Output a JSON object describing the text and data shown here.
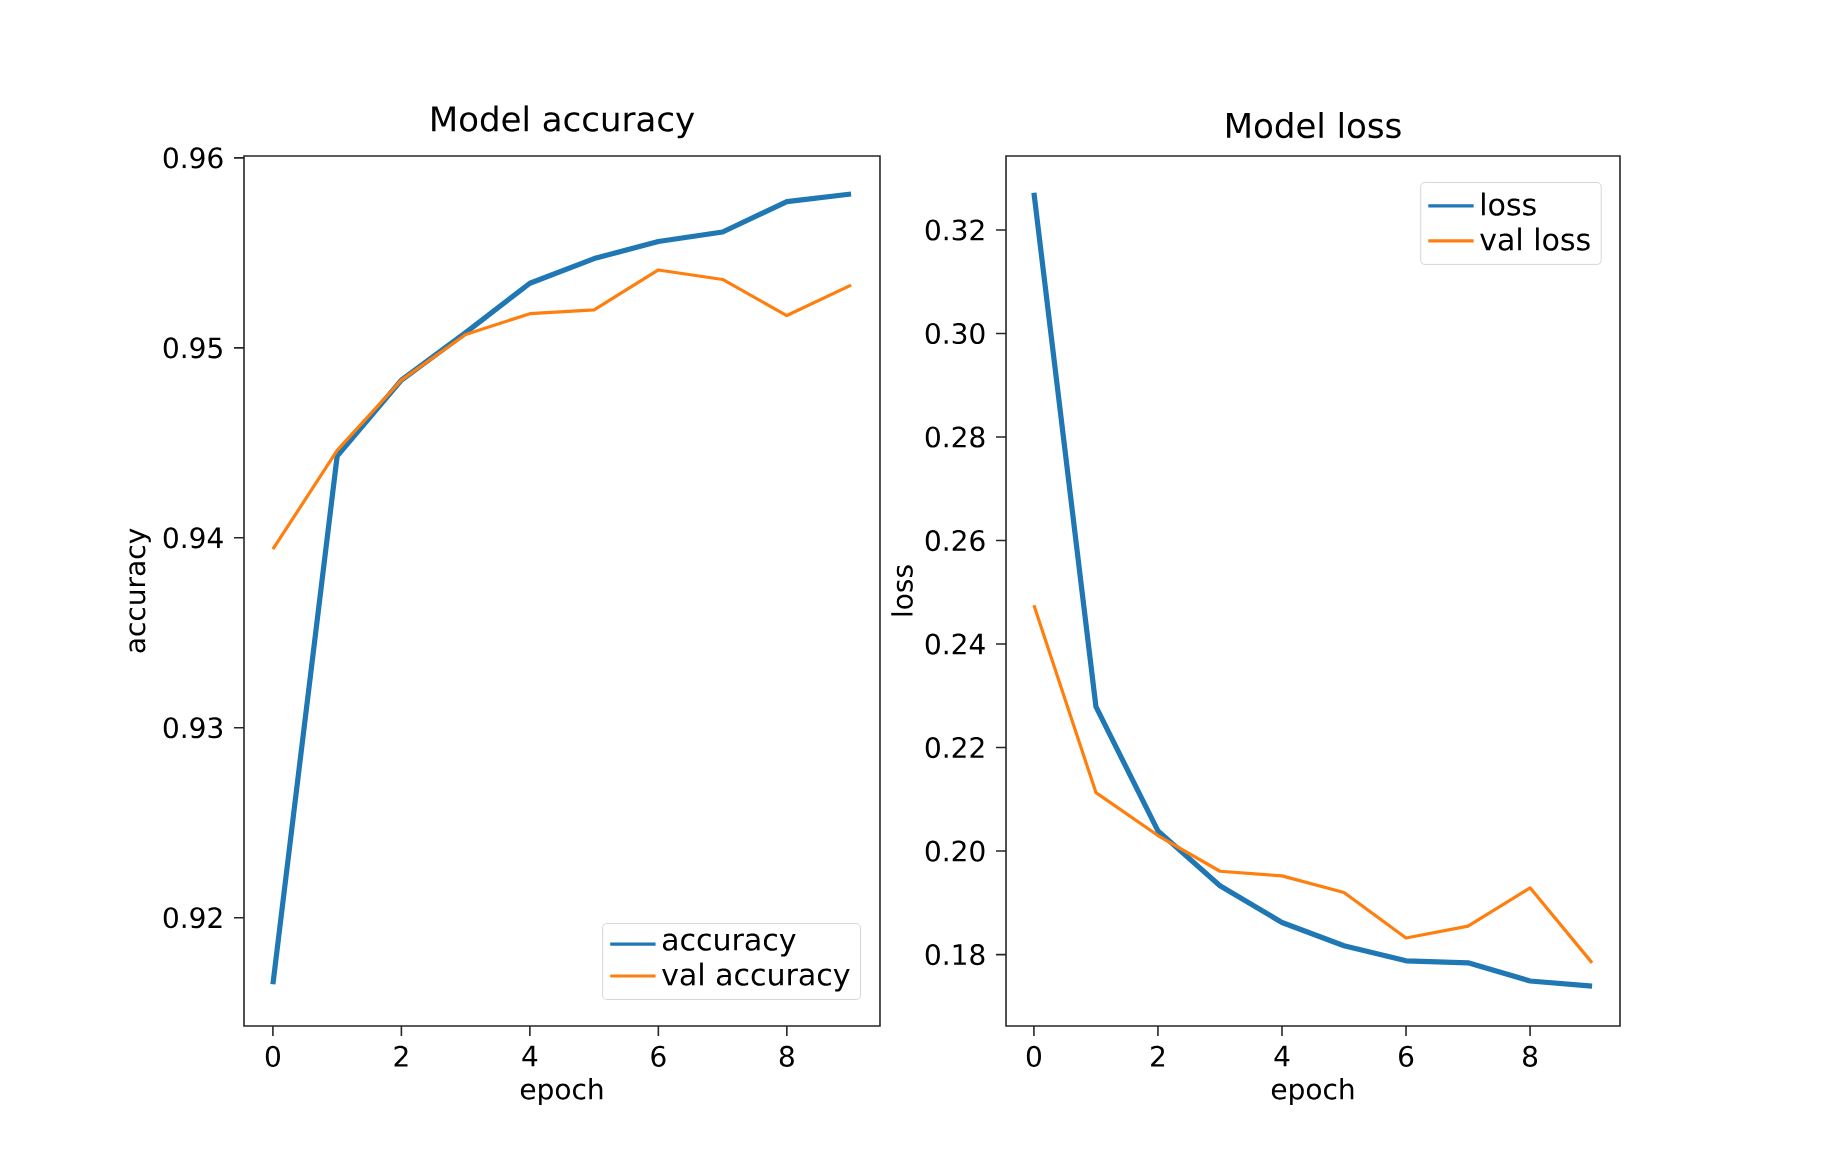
{
  "chart_data": [
    {
      "type": "line",
      "title": "Model accuracy",
      "xlabel": "epoch",
      "ylabel": "accuracy",
      "x": [
        0,
        1,
        2,
        3,
        4,
        5,
        6,
        7,
        8,
        9
      ],
      "xlim": [
        -0.45,
        9.45
      ],
      "xticks": [
        0,
        2,
        4,
        6,
        8
      ],
      "ylim": [
        0.9143,
        0.9601
      ],
      "yticks": [
        0.92,
        0.93,
        0.94,
        0.95,
        0.96
      ],
      "legend": "bottom right",
      "grid": false,
      "series": [
        {
          "name": "accuracy",
          "color": "#1f77b4",
          "values": [
            0.9165,
            0.9443,
            0.9483,
            0.9508,
            0.9534,
            0.9547,
            0.9556,
            0.9561,
            0.9577,
            0.9581
          ]
        },
        {
          "name": "val accuracy",
          "color": "#ff7f0e",
          "values": [
            0.9394,
            0.9446,
            0.9483,
            0.9507,
            0.9518,
            0.952,
            0.9541,
            0.9536,
            0.9517,
            0.9533
          ]
        }
      ]
    },
    {
      "type": "line",
      "title": "Model loss",
      "xlabel": "epoch",
      "ylabel": "loss",
      "x": [
        0,
        1,
        2,
        3,
        4,
        5,
        6,
        7,
        8,
        9
      ],
      "xlim": [
        -0.45,
        9.45
      ],
      "xticks": [
        0,
        2,
        4,
        6,
        8
      ],
      "ylim": [
        0.1662,
        0.3343
      ],
      "yticks": [
        0.18,
        {
          "value": 0.2,
          "label": "0.20"
        },
        0.22,
        0.24,
        0.26,
        0.28,
        {
          "value": 0.3,
          "label": "0.30"
        },
        0.32
      ],
      "legend": "top right",
      "grid": false,
      "series": [
        {
          "name": "loss",
          "color": "#1f77b4",
          "values": [
            0.3272,
            0.2279,
            0.2039,
            0.1933,
            0.1862,
            0.1817,
            0.1788,
            0.1784,
            0.1749,
            0.1739
          ]
        },
        {
          "name": "val loss",
          "color": "#ff7f0e",
          "values": [
            0.2475,
            0.2113,
            0.203,
            0.1961,
            0.1952,
            0.192,
            0.1832,
            0.1855,
            0.1929,
            0.1784
          ]
        }
      ]
    }
  ]
}
